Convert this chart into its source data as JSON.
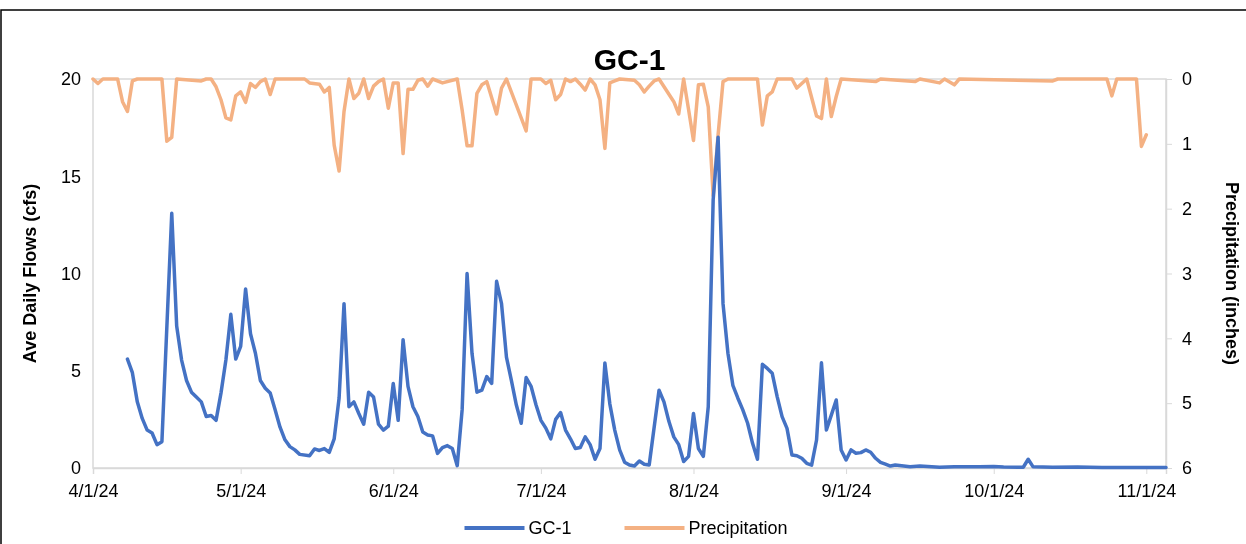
{
  "chart_data": {
    "type": "line",
    "title": "GC-1",
    "ylabel": "Ave Daily Flows (cfs)",
    "y2label": "Precipitation (inches)",
    "xlim": [
      "2024-04-01",
      "2024-11-05"
    ],
    "xticks": [
      {
        "value": "2024-04-01",
        "label": "4/1/24"
      },
      {
        "value": "2024-05-01",
        "label": "5/1/24"
      },
      {
        "value": "2024-06-01",
        "label": "6/1/24"
      },
      {
        "value": "2024-07-01",
        "label": "7/1/24"
      },
      {
        "value": "2024-08-01",
        "label": "8/1/24"
      },
      {
        "value": "2024-09-01",
        "label": "9/1/24"
      },
      {
        "value": "2024-10-01",
        "label": "10/1/24"
      },
      {
        "value": "2024-11-01",
        "label": "11/1/24"
      }
    ],
    "ylim": [
      0,
      20
    ],
    "yticks": [
      0,
      5,
      10,
      15,
      20
    ],
    "y2lim": [
      6,
      0
    ],
    "y2ticks": [
      0,
      1,
      2,
      3,
      4,
      5,
      6
    ],
    "grid": false,
    "legend": "bottom",
    "line_style": "solid",
    "marker": "none",
    "series": [
      {
        "name": "GC-1",
        "color": "#4472c4",
        "x": [
          "2024-04-08",
          "2024-04-09",
          "2024-04-10",
          "2024-04-11",
          "2024-04-12",
          "2024-04-13",
          "2024-04-14",
          "2024-04-15",
          "2024-04-17",
          "2024-04-18",
          "2024-04-19",
          "2024-04-20",
          "2024-04-21",
          "2024-04-22",
          "2024-04-23",
          "2024-04-24",
          "2024-04-25",
          "2024-04-26",
          "2024-04-27",
          "2024-04-28",
          "2024-04-29",
          "2024-04-30",
          "2024-05-01",
          "2024-05-02",
          "2024-05-03",
          "2024-05-04",
          "2024-05-05",
          "2024-05-06",
          "2024-05-07",
          "2024-05-08",
          "2024-05-09",
          "2024-05-10",
          "2024-05-11",
          "2024-05-12",
          "2024-05-13",
          "2024-05-15",
          "2024-05-16",
          "2024-05-17",
          "2024-05-18",
          "2024-05-19",
          "2024-05-20",
          "2024-05-21",
          "2024-05-22",
          "2024-05-23",
          "2024-05-24",
          "2024-05-25",
          "2024-05-26",
          "2024-05-27",
          "2024-05-28",
          "2024-05-29",
          "2024-05-30",
          "2024-05-31",
          "2024-06-01",
          "2024-06-02",
          "2024-06-03",
          "2024-06-04",
          "2024-06-05",
          "2024-06-06",
          "2024-06-07",
          "2024-06-08",
          "2024-06-09",
          "2024-06-10",
          "2024-06-11",
          "2024-06-12",
          "2024-06-13",
          "2024-06-14",
          "2024-06-15",
          "2024-06-16",
          "2024-06-17",
          "2024-06-18",
          "2024-06-19",
          "2024-06-20",
          "2024-06-21",
          "2024-06-22",
          "2024-06-23",
          "2024-06-24",
          "2024-06-25",
          "2024-06-26",
          "2024-06-27",
          "2024-06-28",
          "2024-06-29",
          "2024-06-30",
          "2024-07-01",
          "2024-07-02",
          "2024-07-03",
          "2024-07-04",
          "2024-07-05",
          "2024-07-06",
          "2024-07-07",
          "2024-07-08",
          "2024-07-09",
          "2024-07-10",
          "2024-07-11",
          "2024-07-12",
          "2024-07-13",
          "2024-07-14",
          "2024-07-15",
          "2024-07-16",
          "2024-07-17",
          "2024-07-18",
          "2024-07-19",
          "2024-07-20",
          "2024-07-21",
          "2024-07-22",
          "2024-07-23",
          "2024-07-25",
          "2024-07-26",
          "2024-07-27",
          "2024-07-28",
          "2024-07-29",
          "2024-07-30",
          "2024-07-31",
          "2024-08-01",
          "2024-08-02",
          "2024-08-03",
          "2024-08-04",
          "2024-08-05",
          "2024-08-06",
          "2024-08-07",
          "2024-08-08",
          "2024-08-09",
          "2024-08-10",
          "2024-08-11",
          "2024-08-12",
          "2024-08-13",
          "2024-08-14",
          "2024-08-15",
          "2024-08-16",
          "2024-08-17",
          "2024-08-18",
          "2024-08-19",
          "2024-08-20",
          "2024-08-21",
          "2024-08-22",
          "2024-08-23",
          "2024-08-24",
          "2024-08-25",
          "2024-08-26",
          "2024-08-27",
          "2024-08-28",
          "2024-08-29",
          "2024-08-30",
          "2024-08-31",
          "2024-09-01",
          "2024-09-02",
          "2024-09-03",
          "2024-09-04",
          "2024-09-05",
          "2024-09-06",
          "2024-09-07",
          "2024-09-08",
          "2024-09-09",
          "2024-09-10",
          "2024-09-11",
          "2024-09-14",
          "2024-09-16",
          "2024-09-20",
          "2024-09-23",
          "2024-09-28",
          "2024-10-01",
          "2024-10-03",
          "2024-10-07",
          "2024-10-08",
          "2024-10-09",
          "2024-10-13",
          "2024-10-18",
          "2024-10-23",
          "2024-10-28",
          "2024-11-01",
          "2024-11-05"
        ],
        "values": [
          5.6,
          4.9,
          3.4,
          2.55,
          1.95,
          1.8,
          1.2,
          1.35,
          13.1,
          7.3,
          5.55,
          4.5,
          3.9,
          3.65,
          3.4,
          2.65,
          2.7,
          2.45,
          3.85,
          5.55,
          7.9,
          5.6,
          6.25,
          9.2,
          6.9,
          5.9,
          4.5,
          4.1,
          3.85,
          3.0,
          2.1,
          1.45,
          1.1,
          0.93,
          0.7,
          0.63,
          0.98,
          0.9,
          1.0,
          0.8,
          1.5,
          3.6,
          8.45,
          3.15,
          3.4,
          2.8,
          2.25,
          3.9,
          3.65,
          2.25,
          1.95,
          2.15,
          4.35,
          2.45,
          6.6,
          4.2,
          3.15,
          2.65,
          1.85,
          1.7,
          1.65,
          0.75,
          1.05,
          1.15,
          1.0,
          0.12,
          3.0,
          10.0,
          5.9,
          3.9,
          4.0,
          4.7,
          4.35,
          9.6,
          8.45,
          5.7,
          4.5,
          3.25,
          2.3,
          4.65,
          4.2,
          3.25,
          2.45,
          2.05,
          1.5,
          2.5,
          2.85,
          1.95,
          1.5,
          1.0,
          1.05,
          1.6,
          1.2,
          0.45,
          1.0,
          5.4,
          3.3,
          1.95,
          0.93,
          0.3,
          0.15,
          0.1,
          0.36,
          0.19,
          0.15,
          4.0,
          3.4,
          2.4,
          1.6,
          1.2,
          0.33,
          0.6,
          2.8,
          1.0,
          0.6,
          3.15,
          13.8,
          17.0,
          8.45,
          5.9,
          4.25,
          3.6,
          3.0,
          2.3,
          1.27,
          0.45,
          5.33,
          5.12,
          4.87,
          3.67,
          2.64,
          2.04,
          0.67,
          0.63,
          0.5,
          0.24,
          0.15,
          1.44,
          5.41,
          1.95,
          2.72,
          3.5,
          0.93,
          0.41,
          0.93,
          0.76,
          0.79,
          0.93,
          0.81,
          0.5,
          0.29,
          0.2,
          0.1,
          0.15,
          0.07,
          0.1,
          0.04,
          0.07,
          0.06,
          0.08,
          0.05,
          0.04,
          0.45,
          0.06,
          0.04,
          0.05,
          0.03,
          0.02,
          0.02,
          0.02
        ]
      },
      {
        "name": "Precipitation",
        "color": "#f4b183",
        "axis": "y2",
        "x": [
          "2024-04-01",
          "2024-04-02",
          "2024-04-03",
          "2024-04-06",
          "2024-04-07",
          "2024-04-08",
          "2024-04-09",
          "2024-04-10",
          "2024-04-15",
          "2024-04-16",
          "2024-04-17",
          "2024-04-18",
          "2024-04-23",
          "2024-04-24",
          "2024-04-25",
          "2024-04-26",
          "2024-04-27",
          "2024-04-28",
          "2024-04-29",
          "2024-04-30",
          "2024-05-01",
          "2024-05-02",
          "2024-05-03",
          "2024-05-04",
          "2024-05-05",
          "2024-05-06",
          "2024-05-07",
          "2024-05-08",
          "2024-05-14",
          "2024-05-15",
          "2024-05-17",
          "2024-05-18",
          "2024-05-19",
          "2024-05-20",
          "2024-05-21",
          "2024-05-22",
          "2024-05-23",
          "2024-05-24",
          "2024-05-25",
          "2024-05-26",
          "2024-05-27",
          "2024-05-28",
          "2024-05-29",
          "2024-05-30",
          "2024-05-31",
          "2024-06-01",
          "2024-06-02",
          "2024-06-03",
          "2024-06-04",
          "2024-06-05",
          "2024-06-06",
          "2024-06-07",
          "2024-06-08",
          "2024-06-09",
          "2024-06-11",
          "2024-06-14",
          "2024-06-15",
          "2024-06-16",
          "2024-06-17",
          "2024-06-18",
          "2024-06-19",
          "2024-06-20",
          "2024-06-22",
          "2024-06-23",
          "2024-06-24",
          "2024-06-28",
          "2024-06-29",
          "2024-07-01",
          "2024-07-02",
          "2024-07-03",
          "2024-07-04",
          "2024-07-05",
          "2024-07-06",
          "2024-07-07",
          "2024-07-08",
          "2024-07-09",
          "2024-07-10",
          "2024-07-11",
          "2024-07-12",
          "2024-07-13",
          "2024-07-14",
          "2024-07-15",
          "2024-07-16",
          "2024-07-17",
          "2024-07-20",
          "2024-07-21",
          "2024-07-22",
          "2024-07-23",
          "2024-07-24",
          "2024-07-25",
          "2024-07-28",
          "2024-07-29",
          "2024-07-30",
          "2024-07-31",
          "2024-08-01",
          "2024-08-02",
          "2024-08-03",
          "2024-08-04",
          "2024-08-05",
          "2024-08-06",
          "2024-08-07",
          "2024-08-08",
          "2024-08-14",
          "2024-08-15",
          "2024-08-16",
          "2024-08-17",
          "2024-08-18",
          "2024-08-21",
          "2024-08-22",
          "2024-08-23",
          "2024-08-24",
          "2024-08-26",
          "2024-08-27",
          "2024-08-28",
          "2024-08-29",
          "2024-08-30",
          "2024-08-31",
          "2024-09-07",
          "2024-09-08",
          "2024-09-15",
          "2024-09-16",
          "2024-09-20",
          "2024-09-21",
          "2024-09-23",
          "2024-09-24",
          "2024-10-13",
          "2024-10-14",
          "2024-10-24",
          "2024-10-25",
          "2024-10-26",
          "2024-10-30",
          "2024-10-31",
          "2024-11-01"
        ],
        "values": [
          0,
          0.07,
          0,
          0,
          0.35,
          0.5,
          0.03,
          0,
          0,
          0.96,
          0.9,
          0,
          0.03,
          0,
          0,
          0.12,
          0.32,
          0.6,
          0.63,
          0.26,
          0.2,
          0.36,
          0.07,
          0.13,
          0.04,
          0,
          0.24,
          0,
          0,
          0.06,
          0.08,
          0.2,
          0.13,
          1.02,
          1.42,
          0.5,
          0,
          0.3,
          0.22,
          0,
          0.3,
          0.11,
          0.04,
          0,
          0.45,
          0.06,
          0.06,
          1.15,
          0.16,
          0.16,
          0.02,
          0,
          0.11,
          0,
          0.06,
          0,
          0.48,
          1.03,
          1.03,
          0.22,
          0.09,
          0.04,
          0.54,
          0.14,
          0,
          0.8,
          0,
          0,
          0.07,
          0.02,
          0.32,
          0.24,
          0,
          0.04,
          0,
          0.08,
          0.17,
          0,
          0.09,
          0.32,
          1.07,
          0.06,
          0.03,
          0,
          0.02,
          0.09,
          0.2,
          0.11,
          0.03,
          0,
          0.35,
          0.54,
          0,
          0.47,
          0.95,
          0.09,
          0.08,
          0.43,
          1.8,
          0.86,
          0.04,
          0,
          0,
          0.71,
          0.26,
          0.2,
          0,
          0,
          0.14,
          0.07,
          0,
          0.57,
          0.61,
          0,
          0.58,
          0.27,
          0,
          0.04,
          0,
          0.04,
          0,
          0.06,
          0,
          0.09,
          0,
          0.03,
          0,
          0,
          0.26,
          0,
          0,
          1.04,
          0.86
        ]
      }
    ]
  }
}
